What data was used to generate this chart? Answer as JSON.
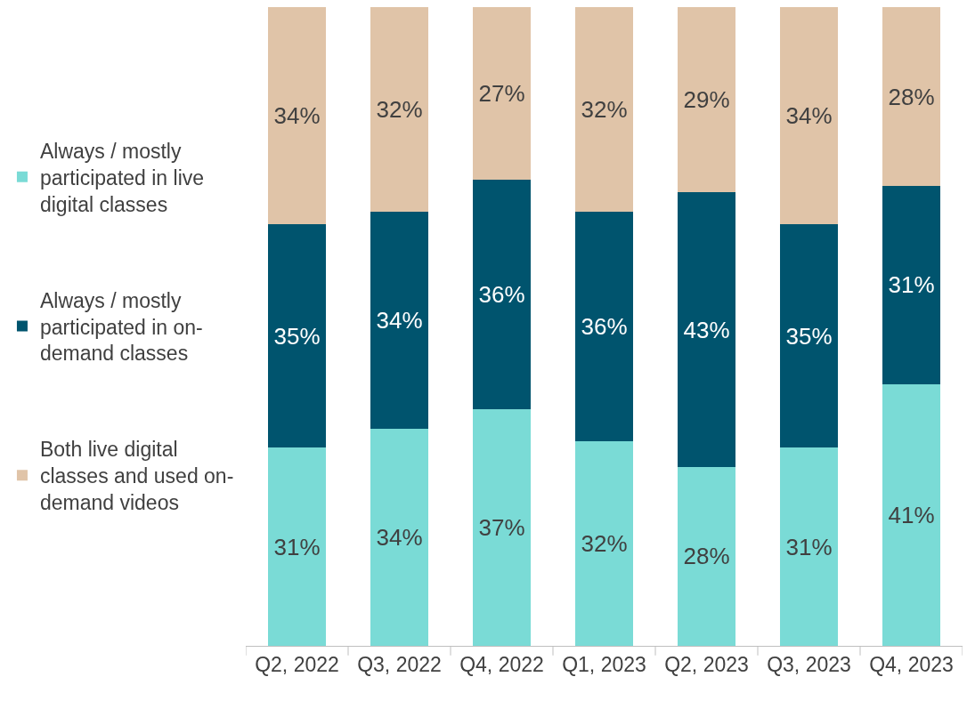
{
  "chart_data": {
    "type": "bar",
    "stacked": true,
    "legend": "left",
    "categories": [
      "Q2, 2022",
      "Q3, 2022",
      "Q4, 2022",
      "Q1, 2023",
      "Q2, 2023",
      "Q3, 2023",
      "Q4, 2023"
    ],
    "series": [
      {
        "name": "Always / mostly participated in live digital classes",
        "color": "#7adbd6",
        "values": [
          31,
          34,
          37,
          32,
          28,
          31,
          41
        ],
        "value_labels": [
          "31%",
          "34%",
          "37%",
          "32%",
          "28%",
          "31%",
          "41%"
        ]
      },
      {
        "name": "Always / mostly participated in on-demand classes",
        "color": "#00546e",
        "values": [
          35,
          34,
          36,
          36,
          43,
          35,
          31
        ],
        "value_labels": [
          "35%",
          "34%",
          "36%",
          "36%",
          "43%",
          "35%",
          "31%"
        ]
      },
      {
        "name": "Both live digital classes and used on-demand videos",
        "color": "#e0c4a8",
        "values": [
          34,
          32,
          27,
          32,
          29,
          34,
          28
        ],
        "value_labels": [
          "34%",
          "32%",
          "27%",
          "32%",
          "29%",
          "34%",
          "28%"
        ]
      }
    ]
  }
}
